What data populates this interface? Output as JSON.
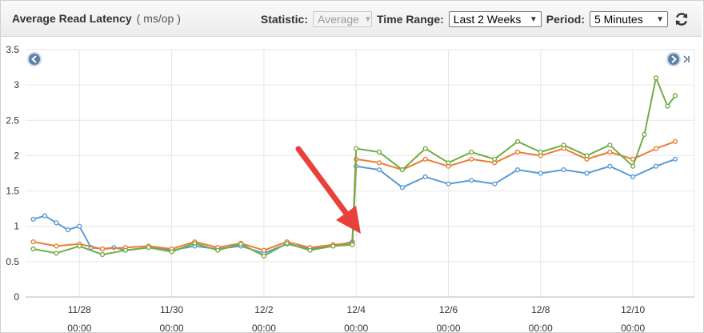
{
  "header": {
    "title": "Average Read Latency",
    "units": "( ms/op )",
    "statistic_label": "Statistic:",
    "statistic_value": "Average",
    "time_range_label": "Time Range:",
    "time_range_value": "Last 2 Weeks",
    "period_label": "Period:",
    "period_value": "5 Minutes",
    "refresh_icon": "refresh-icon"
  },
  "nav": {
    "prev_icon": "chevron-left-icon",
    "next_icon": "chevron-right-icon",
    "last_icon": "skip-to-end-icon"
  },
  "colors": {
    "series_blue": "#5b9bd5",
    "series_orange": "#ed7d31",
    "series_green": "#70ad47",
    "arrow": "#e8413b"
  },
  "chart_data": {
    "type": "line",
    "ylim": [
      0,
      3.5
    ],
    "yticks": [
      "0",
      "0.5",
      "1",
      "1.5",
      "2",
      "2.5",
      "3",
      "3.5"
    ],
    "xticks": [
      {
        "date": "11/28",
        "time": "00:00"
      },
      {
        "date": "11/30",
        "time": "00:00"
      },
      {
        "date": "12/2",
        "time": "00:00"
      },
      {
        "date": "12/4",
        "time": "00:00"
      },
      {
        "date": "12/6",
        "time": "00:00"
      },
      {
        "date": "12/8",
        "time": "00:00"
      },
      {
        "date": "12/10",
        "time": "00:00"
      }
    ],
    "series": [
      {
        "color": "#5b9bd5",
        "values": [
          {
            "day": "11/27 00:00",
            "y": 1.1
          },
          {
            "day": "11/27 06:00",
            "y": 1.15
          },
          {
            "day": "11/27 12:00",
            "y": 1.05
          },
          {
            "day": "11/27 18:00",
            "y": 0.95
          },
          {
            "day": "11/28 00:00",
            "y": 1.0
          },
          {
            "day": "11/28 06:00",
            "y": 0.7
          },
          {
            "day": "11/28 12:00",
            "y": 0.68
          },
          {
            "day": "11/28 18:00",
            "y": 0.7
          },
          {
            "day": "11/29 00:00",
            "y": 0.66
          },
          {
            "day": "11/29 12:00",
            "y": 0.7
          },
          {
            "day": "11/30 00:00",
            "y": 0.66
          },
          {
            "day": "11/30 12:00",
            "y": 0.72
          },
          {
            "day": "12/1 00:00",
            "y": 0.68
          },
          {
            "day": "12/1 12:00",
            "y": 0.72
          },
          {
            "day": "12/2 00:00",
            "y": 0.62
          },
          {
            "day": "12/2 12:00",
            "y": 0.75
          },
          {
            "day": "12/3 00:00",
            "y": 0.68
          },
          {
            "day": "12/3 12:00",
            "y": 0.72
          },
          {
            "day": "12/3 22:00",
            "y": 0.78
          },
          {
            "day": "12/4 00:00",
            "y": 1.85
          },
          {
            "day": "12/4 12:00",
            "y": 1.8
          },
          {
            "day": "12/5 00:00",
            "y": 1.55
          },
          {
            "day": "12/5 12:00",
            "y": 1.7
          },
          {
            "day": "12/6 00:00",
            "y": 1.6
          },
          {
            "day": "12/6 12:00",
            "y": 1.65
          },
          {
            "day": "12/7 00:00",
            "y": 1.6
          },
          {
            "day": "12/7 12:00",
            "y": 1.8
          },
          {
            "day": "12/8 00:00",
            "y": 1.75
          },
          {
            "day": "12/8 12:00",
            "y": 1.8
          },
          {
            "day": "12/9 00:00",
            "y": 1.75
          },
          {
            "day": "12/9 12:00",
            "y": 1.85
          },
          {
            "day": "12/10 00:00",
            "y": 1.7
          },
          {
            "day": "12/10 12:00",
            "y": 1.85
          },
          {
            "day": "12/10 22:00",
            "y": 1.95
          }
        ]
      },
      {
        "color": "#ed7d31",
        "values": [
          {
            "day": "11/27 00:00",
            "y": 0.78
          },
          {
            "day": "11/27 12:00",
            "y": 0.72
          },
          {
            "day": "11/28 00:00",
            "y": 0.75
          },
          {
            "day": "11/28 12:00",
            "y": 0.68
          },
          {
            "day": "11/29 00:00",
            "y": 0.7
          },
          {
            "day": "11/29 12:00",
            "y": 0.72
          },
          {
            "day": "11/30 00:00",
            "y": 0.68
          },
          {
            "day": "11/30 12:00",
            "y": 0.78
          },
          {
            "day": "12/1 00:00",
            "y": 0.7
          },
          {
            "day": "12/1 12:00",
            "y": 0.76
          },
          {
            "day": "12/2 00:00",
            "y": 0.66
          },
          {
            "day": "12/2 12:00",
            "y": 0.78
          },
          {
            "day": "12/3 00:00",
            "y": 0.7
          },
          {
            "day": "12/3 12:00",
            "y": 0.74
          },
          {
            "day": "12/3 22:00",
            "y": 0.76
          },
          {
            "day": "12/4 00:00",
            "y": 1.95
          },
          {
            "day": "12/4 12:00",
            "y": 1.9
          },
          {
            "day": "12/5 00:00",
            "y": 1.8
          },
          {
            "day": "12/5 12:00",
            "y": 1.95
          },
          {
            "day": "12/6 00:00",
            "y": 1.85
          },
          {
            "day": "12/6 12:00",
            "y": 1.95
          },
          {
            "day": "12/7 00:00",
            "y": 1.9
          },
          {
            "day": "12/7 12:00",
            "y": 2.05
          },
          {
            "day": "12/8 00:00",
            "y": 2.0
          },
          {
            "day": "12/8 12:00",
            "y": 2.1
          },
          {
            "day": "12/9 00:00",
            "y": 1.95
          },
          {
            "day": "12/9 12:00",
            "y": 2.05
          },
          {
            "day": "12/10 00:00",
            "y": 1.95
          },
          {
            "day": "12/10 12:00",
            "y": 2.1
          },
          {
            "day": "12/10 22:00",
            "y": 2.2
          }
        ]
      },
      {
        "color": "#70ad47",
        "values": [
          {
            "day": "11/27 00:00",
            "y": 0.68
          },
          {
            "day": "11/27 12:00",
            "y": 0.62
          },
          {
            "day": "11/28 00:00",
            "y": 0.72
          },
          {
            "day": "11/28 12:00",
            "y": 0.6
          },
          {
            "day": "11/29 00:00",
            "y": 0.66
          },
          {
            "day": "11/29 12:00",
            "y": 0.7
          },
          {
            "day": "11/30 00:00",
            "y": 0.64
          },
          {
            "day": "11/30 12:00",
            "y": 0.76
          },
          {
            "day": "12/1 00:00",
            "y": 0.66
          },
          {
            "day": "12/1 12:00",
            "y": 0.75
          },
          {
            "day": "12/2 00:00",
            "y": 0.58
          },
          {
            "day": "12/2 12:00",
            "y": 0.76
          },
          {
            "day": "12/3 00:00",
            "y": 0.66
          },
          {
            "day": "12/3 12:00",
            "y": 0.72
          },
          {
            "day": "12/3 22:00",
            "y": 0.74
          },
          {
            "day": "12/4 00:00",
            "y": 2.1
          },
          {
            "day": "12/4 12:00",
            "y": 2.05
          },
          {
            "day": "12/5 00:00",
            "y": 1.8
          },
          {
            "day": "12/5 12:00",
            "y": 2.1
          },
          {
            "day": "12/6 00:00",
            "y": 1.9
          },
          {
            "day": "12/6 12:00",
            "y": 2.05
          },
          {
            "day": "12/7 00:00",
            "y": 1.95
          },
          {
            "day": "12/7 12:00",
            "y": 2.2
          },
          {
            "day": "12/8 00:00",
            "y": 2.05
          },
          {
            "day": "12/8 12:00",
            "y": 2.15
          },
          {
            "day": "12/9 00:00",
            "y": 2.0
          },
          {
            "day": "12/9 12:00",
            "y": 2.15
          },
          {
            "day": "12/10 00:00",
            "y": 1.85
          },
          {
            "day": "12/10 06:00",
            "y": 2.3
          },
          {
            "day": "12/10 12:00",
            "y": 3.1
          },
          {
            "day": "12/10 18:00",
            "y": 2.7
          },
          {
            "day": "12/10 22:00",
            "y": 2.85
          }
        ]
      }
    ]
  }
}
